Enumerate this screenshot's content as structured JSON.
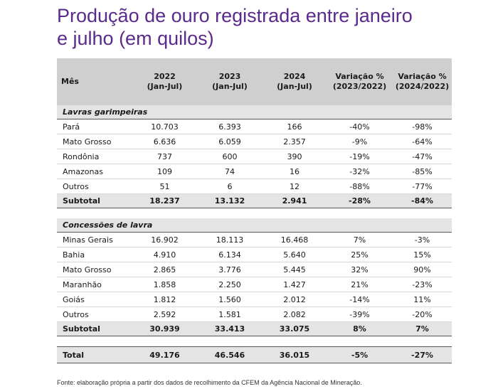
{
  "title_line1": "Produção de ouro registrada entre janeiro",
  "title_line2": "e julho (em quilos)",
  "headers": {
    "month": "Mês",
    "y2022_a": "2022",
    "y2022_b": "(Jan-Jul)",
    "y2023_a": "2023",
    "y2023_b": "(Jan-Jul)",
    "y2024_a": "2024",
    "y2024_b": "(Jan-Jul)",
    "var1_a": "Variação %",
    "var1_b": "(2023/2022)",
    "var2_a": "Variação %",
    "var2_b": "(2024/2022)"
  },
  "section1": {
    "label": "Lavras garimpeiras",
    "rows": [
      [
        "Pará",
        "10.703",
        "6.393",
        "166",
        "-40%",
        "-98%"
      ],
      [
        "Mato Grosso",
        "6.636",
        "6.059",
        "2.357",
        "-9%",
        "-64%"
      ],
      [
        "Rondônia",
        "737",
        "600",
        "390",
        "-19%",
        "-47%"
      ],
      [
        "Amazonas",
        "109",
        "74",
        "16",
        "-32%",
        "-85%"
      ],
      [
        "Outros",
        "51",
        "6",
        "12",
        "-88%",
        "-77%"
      ]
    ],
    "subtotal": [
      "Subtotal",
      "18.237",
      "13.132",
      "2.941",
      "-28%",
      "-84%"
    ]
  },
  "section2": {
    "label": "Concessões de lavra",
    "rows": [
      [
        "Minas Gerais",
        "16.902",
        "18.113",
        "16.468",
        "7%",
        "-3%"
      ],
      [
        "Bahia",
        "4.910",
        "6.134",
        "5.640",
        "25%",
        "15%"
      ],
      [
        "Mato Grosso",
        "2.865",
        "3.776",
        "5.445",
        "32%",
        "90%"
      ],
      [
        "Maranhão",
        "1.858",
        "2.250",
        "1.427",
        "21%",
        "-23%"
      ],
      [
        "Goiás",
        "1.812",
        "1.560",
        "2.012",
        "-14%",
        "11%"
      ],
      [
        "Outros",
        "2.592",
        "1.581",
        "2.082",
        "-39%",
        "-20%"
      ]
    ],
    "subtotal": [
      "Subtotal",
      "30.939",
      "33.413",
      "33.075",
      "8%",
      "7%"
    ]
  },
  "total": [
    "Total",
    "49.176",
    "46.546",
    "36.015",
    "-5%",
    "-27%"
  ],
  "source": "Fonte: elaboração própria a partir dos dados de recolhimento da CFEM da Agência Nacional de Mineração."
}
